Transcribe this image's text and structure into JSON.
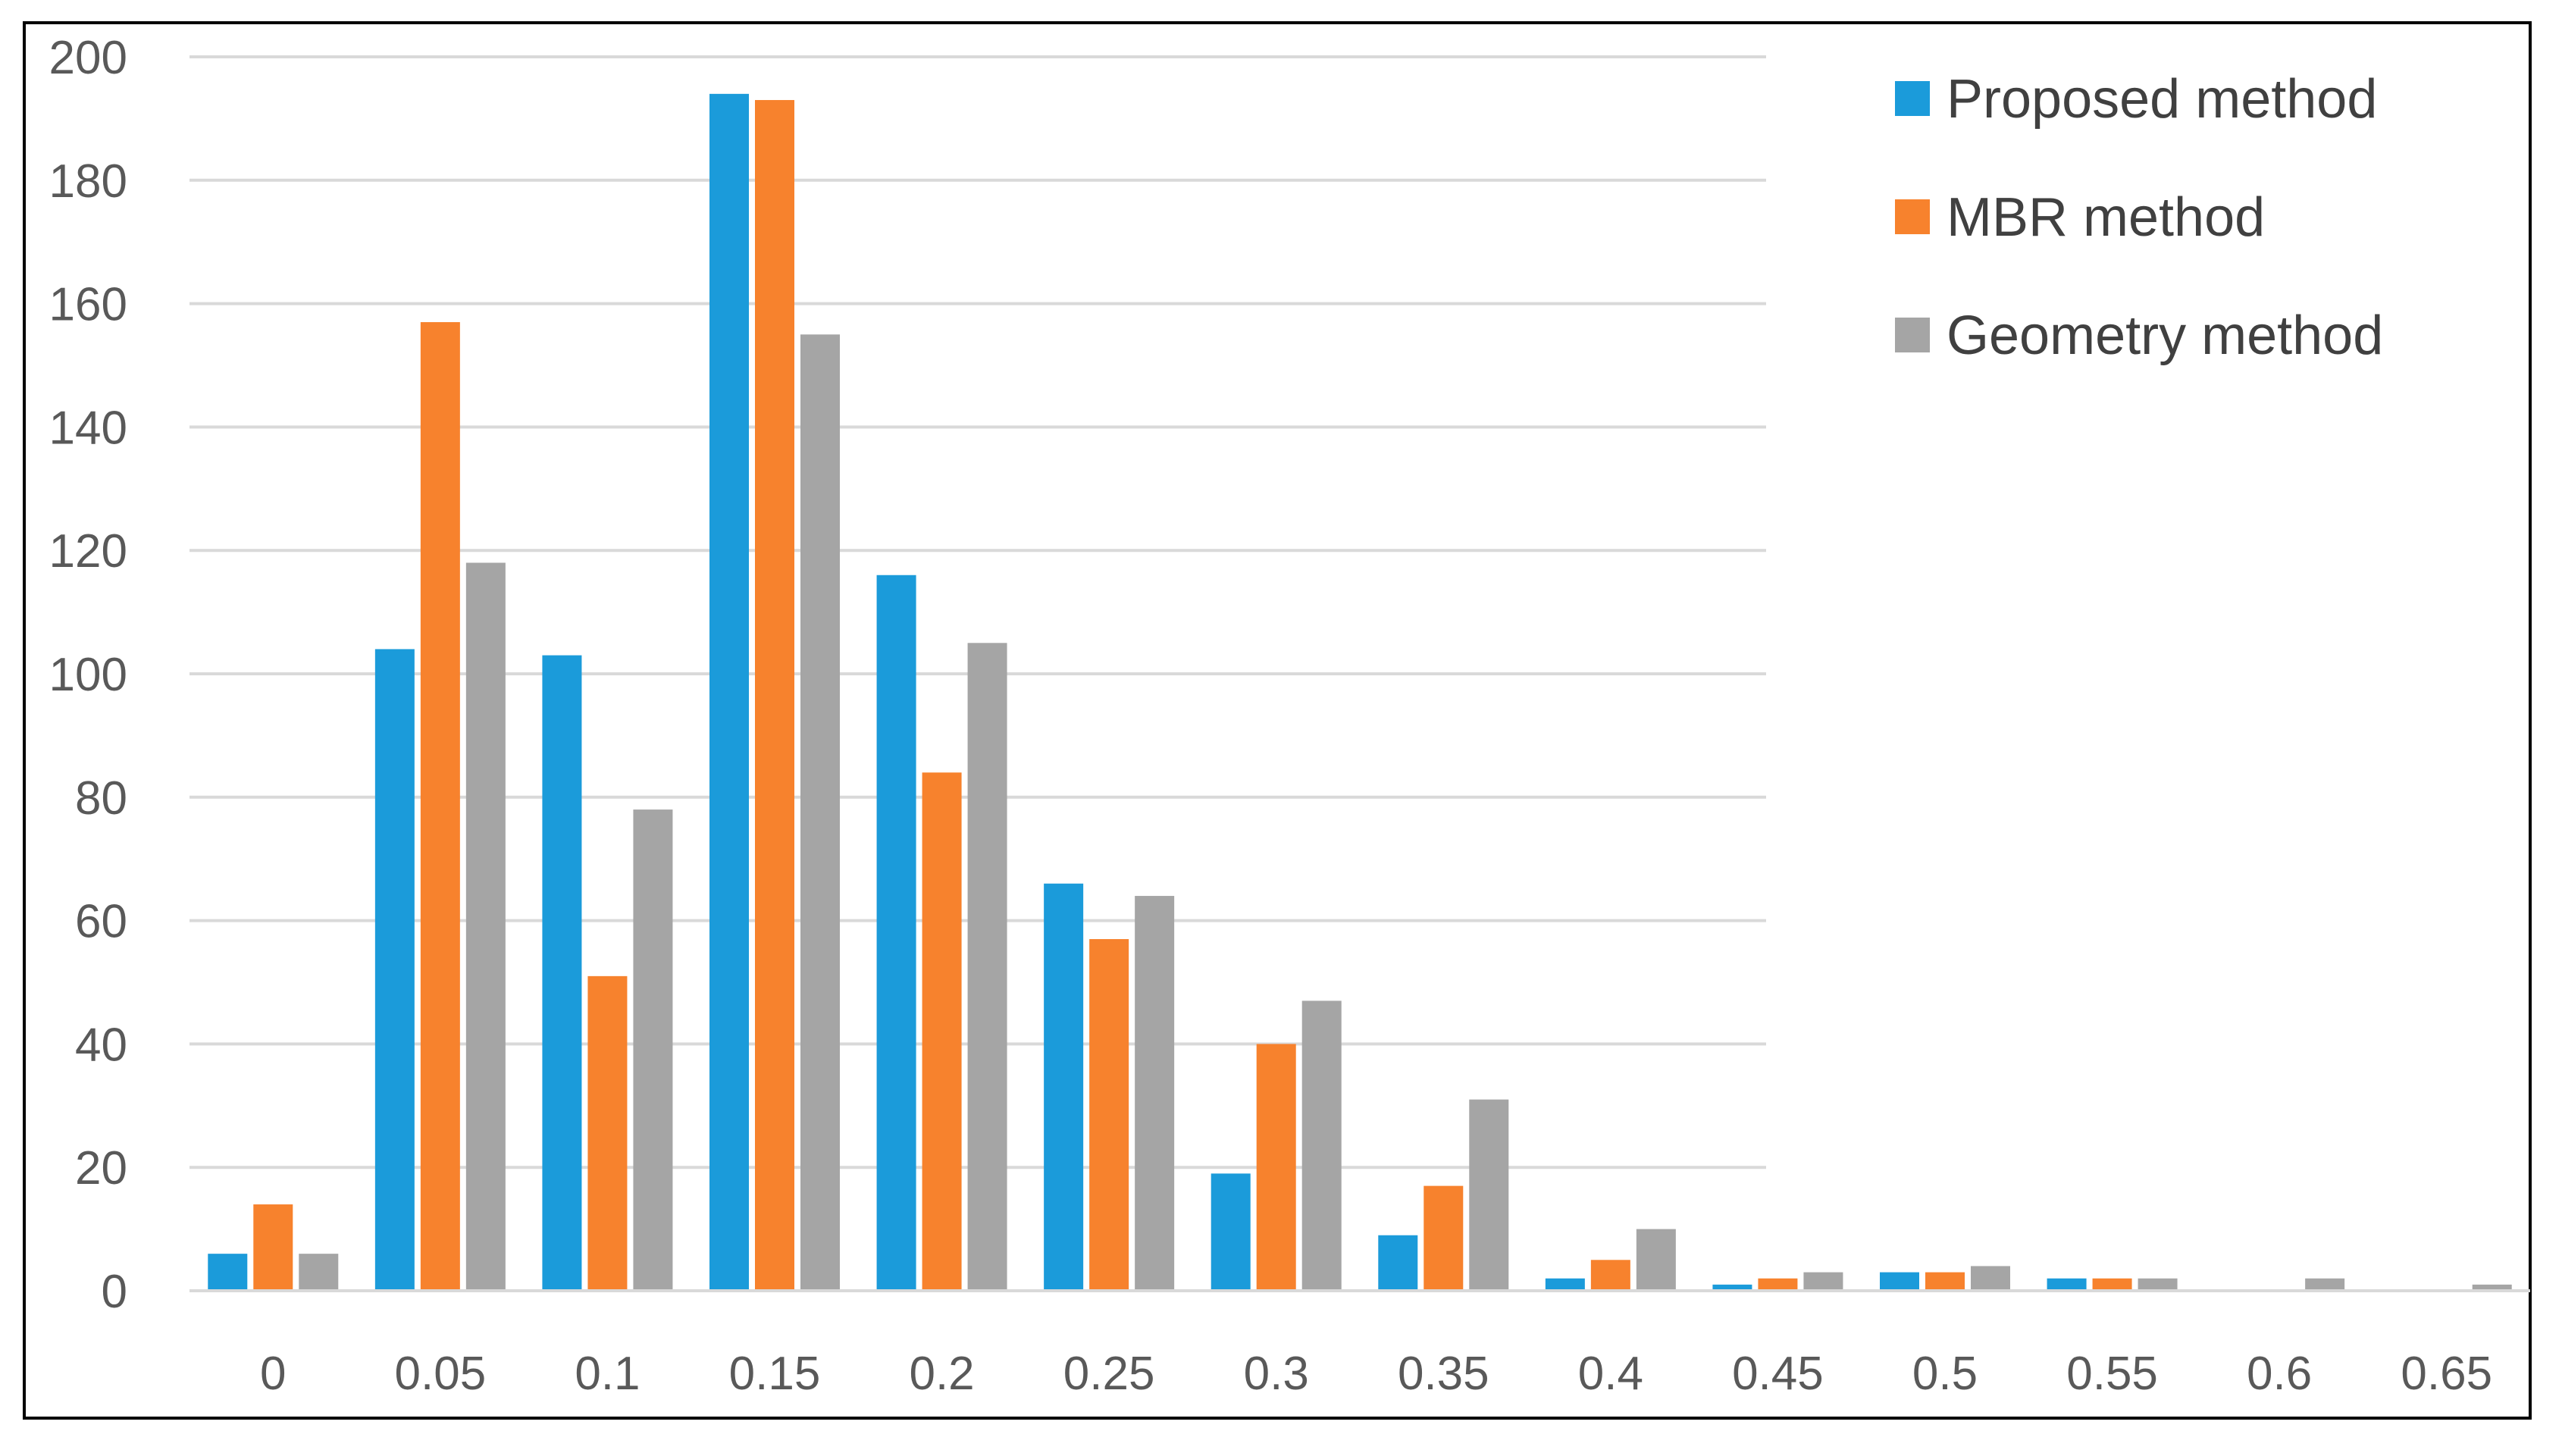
{
  "chart_data": {
    "type": "bar",
    "categories": [
      "0",
      "0.05",
      "0.1",
      "0.15",
      "0.2",
      "0.25",
      "0.3",
      "0.35",
      "0.4",
      "0.45",
      "0.5",
      "0.55",
      "0.6",
      "0.65"
    ],
    "series": [
      {
        "name": "Proposed method",
        "color": "#1B9BDA",
        "values": [
          6,
          104,
          103,
          194,
          116,
          66,
          19,
          9,
          2,
          1,
          3,
          2,
          0,
          0
        ]
      },
      {
        "name": "MBR method",
        "color": "#F7822D",
        "values": [
          14,
          157,
          51,
          193,
          84,
          57,
          40,
          17,
          5,
          2,
          3,
          2,
          0,
          0
        ]
      },
      {
        "name": "Geometry method",
        "color": "#A5A5A5",
        "values": [
          6,
          118,
          78,
          155,
          105,
          64,
          47,
          31,
          10,
          3,
          4,
          2,
          2,
          1
        ]
      }
    ],
    "ylim": [
      0,
      200
    ],
    "yticks": [
      "0",
      "20",
      "40",
      "60",
      "80",
      "100",
      "120",
      "140",
      "160",
      "180",
      "200"
    ],
    "grid": true,
    "legend_position": "top-right",
    "title": "",
    "xlabel": "",
    "ylabel": ""
  }
}
